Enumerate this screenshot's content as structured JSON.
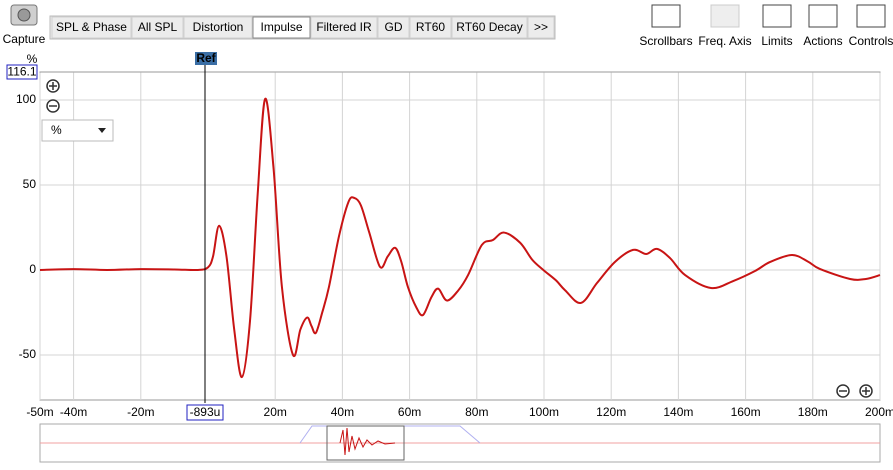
{
  "toolbar": {
    "capture": "Capture",
    "tabs": [
      "SPL & Phase",
      "All SPL",
      "Distortion",
      "Impulse",
      "Filtered IR",
      "GD",
      "RT60",
      "RT60 Decay",
      ">>"
    ],
    "buttons": [
      "Scrollbars",
      "Freq. Axis",
      "Limits",
      "Actions",
      "Controls"
    ]
  },
  "chart_data": {
    "type": "line",
    "y_unit": "%",
    "unit_select": "%",
    "ref_label": "Ref",
    "cursor": {
      "value": -0.000893,
      "label": "-893u"
    },
    "x": [
      -0.05,
      -0.04,
      -0.03,
      -0.02,
      -0.01,
      -0.003,
      0.0,
      0.0015,
      0.0033,
      0.0055,
      0.0078,
      0.0101,
      0.0125,
      0.0148,
      0.017,
      0.0195,
      0.022,
      0.0253,
      0.0275,
      0.0295,
      0.0308,
      0.0321,
      0.034,
      0.036,
      0.039,
      0.0418,
      0.0435,
      0.0455,
      0.048,
      0.0512,
      0.0535,
      0.0557,
      0.0575,
      0.0595,
      0.062,
      0.064,
      0.0665,
      0.0685,
      0.0711,
      0.0745,
      0.0774,
      0.0815,
      0.0848,
      0.0881,
      0.0929,
      0.0965,
      0.0998,
      0.1035,
      0.1063,
      0.111,
      0.1158,
      0.1211,
      0.1265,
      0.1304,
      0.1336,
      0.1375,
      0.142,
      0.1497,
      0.1563,
      0.1628,
      0.1673,
      0.1738,
      0.1785,
      0.1821,
      0.1911,
      0.1958,
      0.2
    ],
    "series": [
      {
        "name": "Impulse",
        "color": "#c81414",
        "values": [
          0,
          0.5,
          0,
          0.5,
          0.3,
          0,
          1.5,
          8,
          26,
          8,
          -35,
          -63,
          -30,
          45,
          100.6,
          60,
          -10,
          -50,
          -35,
          -28,
          -33,
          -37,
          -25,
          -10,
          20,
          40,
          42.4,
          38,
          22,
          1.8,
          8,
          13,
          5,
          -10,
          -22,
          -26.5,
          -16,
          -11,
          -18,
          -12,
          -3,
          14.7,
          17.6,
          22,
          16,
          6,
          0,
          -6,
          -12,
          -19.4,
          -7.6,
          4.7,
          11.8,
          9.4,
          12.4,
          7,
          -3,
          -10.6,
          -6.5,
          -0.6,
          4.7,
          8.8,
          5,
          0.6,
          -5.3,
          -5.3,
          -3
        ]
      }
    ],
    "xlim": [
      -0.05,
      0.2
    ],
    "ylim": [
      -76.5,
      116.1
    ],
    "xticks": [
      {
        "value": -0.05,
        "label": "-50m"
      },
      {
        "value": -0.04,
        "label": "-40m"
      },
      {
        "value": -0.02,
        "label": "-20m"
      },
      {
        "value": 0.02,
        "label": "20m"
      },
      {
        "value": 0.04,
        "label": "40m"
      },
      {
        "value": 0.06,
        "label": "60m"
      },
      {
        "value": 0.08,
        "label": "80m"
      },
      {
        "value": 0.1,
        "label": "100m"
      },
      {
        "value": 0.12,
        "label": "120m"
      },
      {
        "value": 0.14,
        "label": "140m"
      },
      {
        "value": 0.16,
        "label": "160m"
      },
      {
        "value": 0.18,
        "label": "180m"
      },
      {
        "value": 0.2,
        "label": "200m"
      }
    ],
    "yticks": [
      -50,
      0,
      50,
      100
    ],
    "grid": true
  }
}
